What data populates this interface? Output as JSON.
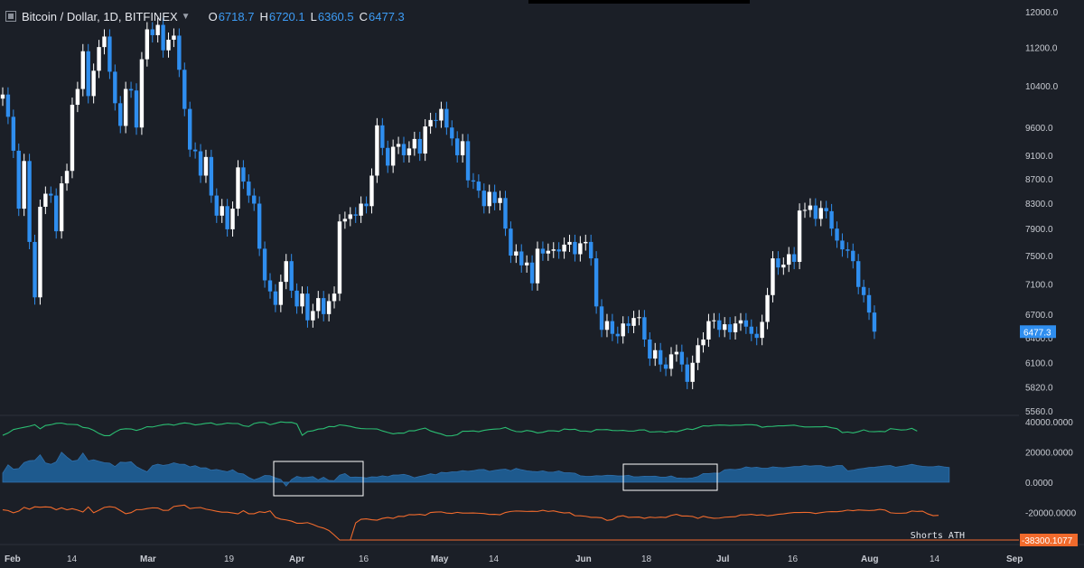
{
  "header": {
    "symbol": "Bitcoin / Dollar, 1D, BITFINEX",
    "o_label": "O",
    "o_value": "6718.7",
    "h_label": "H",
    "h_value": "6720.1",
    "l_label": "L",
    "l_value": "6360.5",
    "c_label": "C",
    "c_value": "6477.3"
  },
  "annotation": "Shorts ATH",
  "colors": {
    "background": "#1b1f27",
    "up_candle": "#ffffff",
    "down_candle": "#2f8eef",
    "longs_line": "#2bbd72",
    "area_fill": "#1e5a8e",
    "shorts_line": "#f06a2c",
    "highlight_box": "#ffffff"
  },
  "chart_data": [
    {
      "type": "candlestick",
      "title": "Bitcoin / Dollar, 1D, BITFINEX",
      "y_scale": "log",
      "ylim": [
        5560,
        12000
      ],
      "y_ticks": [
        "12000.0",
        "11200.0",
        "10400.0",
        "9600.0",
        "9100.0",
        "8700.0",
        "8300.0",
        "7900.0",
        "7500.0",
        "7100.0",
        "6700.0",
        "6100.0",
        "5820.0",
        "5560.0"
      ],
      "x_ticks": [
        "Feb",
        "14",
        "Mar",
        "19",
        "Apr",
        "16",
        "May",
        "14",
        "Jun",
        "18",
        "Jul",
        "16",
        "Aug",
        "14",
        "Sep"
      ],
      "last_price_label": "6477.3",
      "hidden_tick": "6400.0",
      "close": [
        10230,
        9800,
        9180,
        8210,
        9000,
        7700,
        6920,
        8240,
        8450,
        8420,
        7860,
        8620,
        8830,
        10030,
        10340,
        11120,
        10200,
        10710,
        11210,
        11440,
        10690,
        10060,
        9630,
        10340,
        10310,
        9600,
        10950,
        11600,
        11470,
        11700,
        11140,
        11370,
        11460,
        10730,
        9950,
        9200,
        9170,
        8750,
        9070,
        8420,
        8100,
        8250,
        7890,
        8210,
        8890,
        8650,
        8420,
        8290,
        7600,
        7150,
        7000,
        6820,
        7130,
        7420,
        7010,
        6800,
        6970,
        6620,
        6740,
        6910,
        6700,
        6870,
        6970,
        8010,
        8050,
        8120,
        8100,
        8290,
        8250,
        8750,
        9640,
        9230,
        8920,
        9250,
        9300,
        9100,
        9220,
        9390,
        9130,
        9620,
        9740,
        9730,
        9950,
        9600,
        9400,
        9100,
        9350,
        8670,
        8650,
        8500,
        8250,
        8480,
        8300,
        8380,
        7900,
        7500,
        7560,
        7360,
        7400,
        7110,
        7600,
        7530,
        7570,
        7590,
        7560,
        7660,
        7700,
        7520,
        7680,
        7700,
        7460,
        6800,
        6500,
        6610,
        6450,
        6420,
        6580,
        6550,
        6650,
        6660,
        6380,
        6150,
        6250,
        6080,
        6030,
        6200,
        6230,
        6080,
        5880,
        6100,
        6310,
        6380,
        6610,
        6620,
        6500,
        6570,
        6470,
        6580,
        6620,
        6540,
        6450,
        6400,
        6600,
        6950,
        7460,
        7330,
        7370,
        7520,
        7410,
        8180,
        8190,
        8260,
        8050,
        8220,
        8170,
        7900,
        7720,
        7590,
        7570,
        7420,
        7060,
        6950,
        6720,
        6477.3
      ]
    },
    {
      "type": "line+area",
      "ylim": [
        -38300,
        40000
      ],
      "y_ticks": [
        "40000.0000",
        "20000.0000",
        "0.0000",
        "-20000.0000"
      ],
      "last_value_label": "-38300.1077",
      "series": [
        {
          "values": [
            31000,
            32500,
            34800,
            35600,
            36300,
            37000,
            38000,
            35300,
            37500,
            38000,
            38900,
            39100,
            38300,
            38200,
            38000,
            36200,
            35800,
            34300,
            32200,
            30800,
            30800,
            33100,
            34900,
            35300,
            35200,
            34200,
            35200,
            36700,
            36500,
            37300,
            38000,
            38300,
            37700,
            38600,
            39200,
            38800,
            37900,
            38300,
            38900,
            39200,
            38000,
            38400,
            39100,
            38800,
            38800,
            37300,
            36800,
            38800,
            39500,
            39500,
            38000,
            38900,
            39900,
            39500,
            39600,
            38500,
            31000,
            33500,
            34000,
            35100,
            35400,
            36800,
            36700,
            37900,
            37500,
            36900,
            36000,
            35500,
            35300,
            35300,
            35200,
            33900,
            32900,
            32000,
            32500,
            32400,
            34000,
            34000,
            35000,
            35800,
            33900,
            32800,
            31900,
            30600,
            30700,
            31400,
            33700,
            33700,
            33900,
            33400,
            34300,
            34800,
            35100,
            35300,
            36200,
            34600,
            33500,
            33300,
            34200,
            33700,
            32600,
            33000,
            34000,
            34000,
            33600,
            35200,
            34800,
            35000,
            33800,
            33800,
            33300,
            34800,
            34700,
            34800,
            34200,
            34100,
            34300,
            33800,
            33800,
            34500,
            34600,
            33200,
            33300,
            33500,
            33000,
            33700,
            33300,
            34300,
            35300,
            34800,
            36000,
            37300,
            37100,
            37600,
            37800,
            37700,
            37500,
            37700,
            37700,
            38000,
            38000,
            37700,
            36300,
            36800,
            36900,
            37300,
            37300,
            37500,
            37700,
            37000,
            36500,
            36500,
            36600,
            36600,
            36800,
            36000,
            35400,
            32800,
            33200,
            32600,
            33400,
            34600,
            33500,
            33400,
            33600,
            33400,
            35400,
            35000,
            34500,
            34700,
            35600,
            33800
          ]
        },
        {
          "values": [
            6000,
            11500,
            8600,
            9000,
            13000,
            14200,
            14400,
            18100,
            12700,
            11800,
            13400,
            19800,
            16600,
            13900,
            14500,
            19300,
            14100,
            14800,
            13800,
            12900,
            12600,
            10300,
            13200,
            13000,
            13500,
            10300,
            8400,
            6800,
            10900,
            11900,
            11100,
            11600,
            12800,
            11900,
            11800,
            10100,
            10900,
            9400,
            9500,
            7900,
            8400,
            7600,
            6900,
            8200,
            5900,
            5400,
            3100,
            1500,
            2700,
            4400,
            4300,
            2900,
            1800,
            -2600,
            1700,
            3800,
            3000,
            3200,
            3700,
            1500,
            3300,
            1100,
            1000,
            4600,
            5700,
            3200,
            3400,
            3200,
            2800,
            3500,
            3400,
            4200,
            3600,
            4700,
            4700,
            5200,
            4300,
            2900,
            3800,
            4500,
            5500,
            4900,
            6500,
            6200,
            6800,
            6900,
            7600,
            7200,
            7600,
            8300,
            8400,
            7100,
            7800,
            8300,
            8600,
            7600,
            9100,
            8200,
            7500,
            7100,
            6900,
            7500,
            6600,
            6700,
            7400,
            6200,
            6200,
            5900,
            4200,
            3900,
            3800,
            4300,
            4100,
            4600,
            4500,
            4100,
            4100,
            4600,
            3500,
            3600,
            3900,
            3800,
            4000,
            3300,
            3300,
            4100,
            2800,
            2600,
            2500,
            2800,
            3700,
            5700,
            5700,
            6000,
            5900,
            8200,
            8500,
            8300,
            8800,
            10100,
            9500,
            9900,
            9200,
            9200,
            10100,
            9700,
            9500,
            9900,
            10300,
            10300,
            11000,
            10600,
            10900,
            10900,
            10000,
            10200,
            11000,
            11000,
            7500,
            7900,
            8700,
            9100,
            9700,
            9900,
            10300,
            10800,
            11000,
            9900,
            10500,
            11000,
            11800,
            11000,
            10500,
            10200,
            10200,
            10700,
            10100,
            9700
          ]
        },
        {
          "values": [
            -18300,
            -18800,
            -20300,
            -19200,
            -16700,
            -17900,
            -16300,
            -16600,
            -16400,
            -16600,
            -18300,
            -17000,
            -18300,
            -17600,
            -18500,
            -19800,
            -16400,
            -20300,
            -18600,
            -16700,
            -16200,
            -16700,
            -18800,
            -20900,
            -20200,
            -18200,
            -18200,
            -17500,
            -17000,
            -17100,
            -18700,
            -18600,
            -16100,
            -15600,
            -15200,
            -17500,
            -17000,
            -16800,
            -17900,
            -18500,
            -19300,
            -19900,
            -19900,
            -20400,
            -21000,
            -18900,
            -20900,
            -20900,
            -19600,
            -20100,
            -19000,
            -23300,
            -24500,
            -25000,
            -25800,
            -27200,
            -27200,
            -26800,
            -28000,
            -29500,
            -30400,
            -32000,
            -35000,
            -38300,
            -38300,
            -38300,
            -27000,
            -24600,
            -24300,
            -24900,
            -25200,
            -24000,
            -23400,
            -24000,
            -22600,
            -22700,
            -21500,
            -21600,
            -21300,
            -21900,
            -20100,
            -19800,
            -19700,
            -20500,
            -20700,
            -20000,
            -20500,
            -20500,
            -20400,
            -20600,
            -20800,
            -21400,
            -21300,
            -21600,
            -20100,
            -19400,
            -19100,
            -19200,
            -19400,
            -19300,
            -19400,
            -18600,
            -19400,
            -19000,
            -19800,
            -20400,
            -20200,
            -22200,
            -22300,
            -22600,
            -23300,
            -23300,
            -23600,
            -25300,
            -24800,
            -22800,
            -22200,
            -23300,
            -23200,
            -23100,
            -24000,
            -23200,
            -23500,
            -23200,
            -23400,
            -22000,
            -21300,
            -22400,
            -22400,
            -22700,
            -24000,
            -22600,
            -23400,
            -23900,
            -23800,
            -23200,
            -23000,
            -22900,
            -21700,
            -21700,
            -21300,
            -21900,
            -21600,
            -22300,
            -21900,
            -21300,
            -21000,
            -20500,
            -20100,
            -20100,
            -20000,
            -20100,
            -20800,
            -20200,
            -19700,
            -19500,
            -19600,
            -19200,
            -18500,
            -18900,
            -18400,
            -18600,
            -18800,
            -18600,
            -18000,
            -18500,
            -20300,
            -20600,
            -20600,
            -20400,
            -19100,
            -19400,
            -19200,
            -21000,
            -22200,
            -22000
          ]
        }
      ]
    }
  ]
}
